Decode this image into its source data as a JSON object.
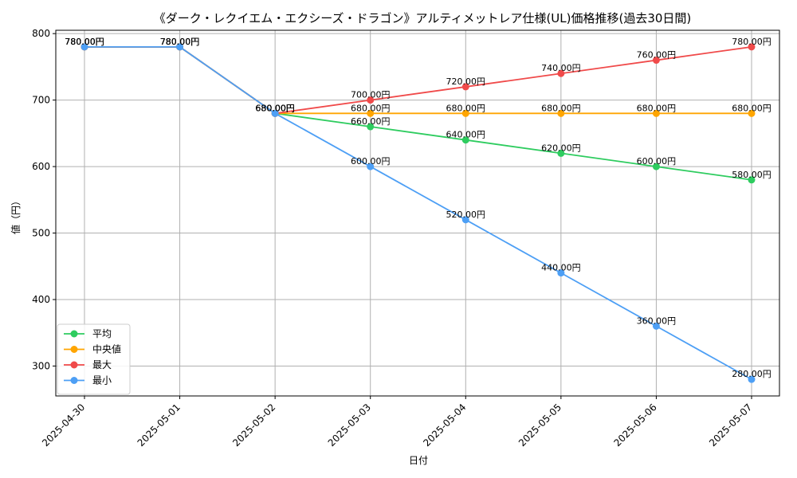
{
  "chart_data": {
    "type": "line",
    "title": "《ダーク・レクイエム・エクシーズ・ドラゴン》アルティメットレア仕様(UL)価格推移(過去30日間)",
    "xlabel": "日付",
    "ylabel": "値（円）",
    "categories": [
      "2025-04-30",
      "2025-05-01",
      "2025-05-02",
      "2025-05-03",
      "2025-05-04",
      "2025-05-05",
      "2025-05-06",
      "2025-05-07"
    ],
    "ylim": [
      255,
      805
    ],
    "yticks": [
      300,
      400,
      500,
      600,
      700,
      800
    ],
    "grid": true,
    "legend_position": "lower-left",
    "value_suffix": "円",
    "series": [
      {
        "name": "平均",
        "color": "#2ecc5f",
        "values": [
          780,
          780,
          680,
          660,
          640,
          620,
          600,
          580
        ]
      },
      {
        "name": "中央値",
        "color": "#ffa500",
        "values": [
          780,
          780,
          680,
          680,
          680,
          680,
          680,
          680
        ]
      },
      {
        "name": "最大",
        "color": "#f04a4a",
        "values": [
          780,
          780,
          680,
          700,
          720,
          740,
          760,
          780
        ]
      },
      {
        "name": "最小",
        "color": "#4d9ff5",
        "values": [
          780,
          780,
          680,
          600,
          520,
          440,
          360,
          280
        ]
      }
    ]
  }
}
